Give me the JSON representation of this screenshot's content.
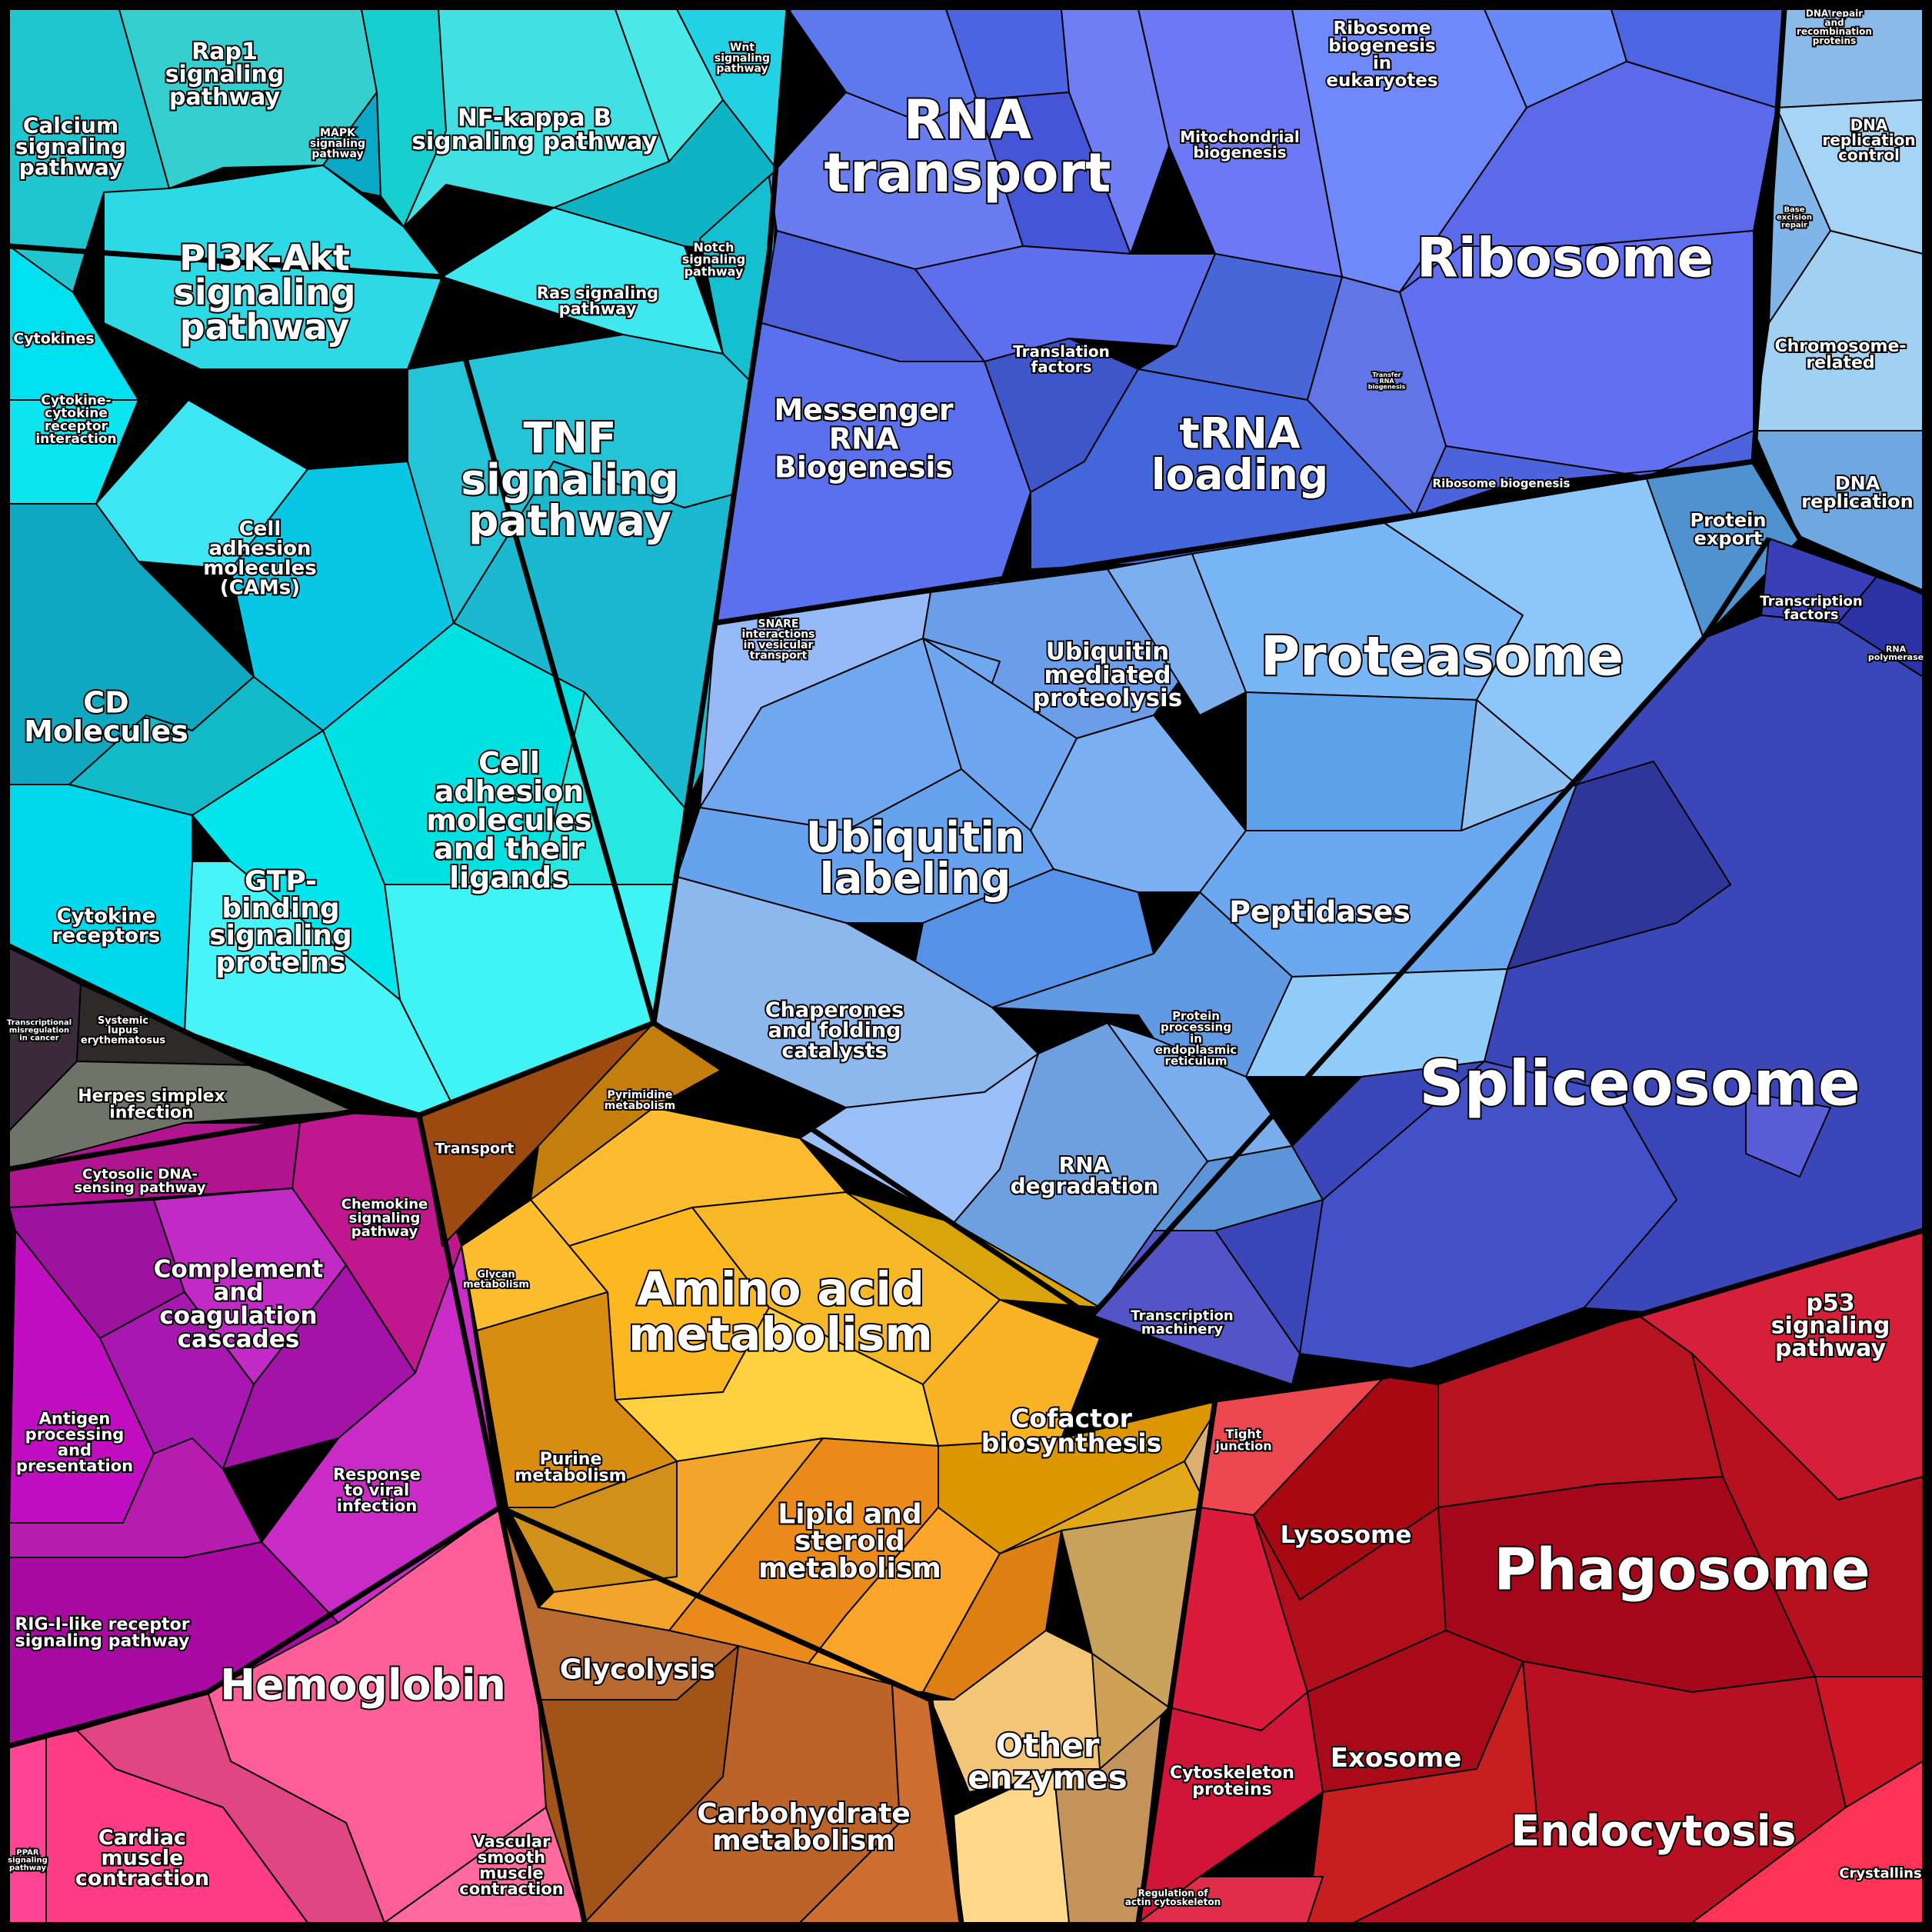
{
  "regions": [
    {
      "id": "signaling",
      "color": "#14c8d8"
    },
    {
      "id": "genetic",
      "color": "#5a6ee8"
    },
    {
      "id": "protein",
      "color": "#7eaff0"
    },
    {
      "id": "spliceosome",
      "color": "#3a46b8"
    },
    {
      "id": "dna",
      "color": "#6fb0ea"
    },
    {
      "id": "disease",
      "color": "#3a2d3a"
    },
    {
      "id": "immune",
      "color": "#b018b0"
    },
    {
      "id": "circulation",
      "color": "#ff4e9a"
    },
    {
      "id": "metabolism",
      "color": "#f0a820"
    },
    {
      "id": "cellular",
      "color": "#c8102e"
    }
  ],
  "labels": {
    "calcium": "Calcium signaling pathway",
    "rap1": "Rap1 signaling pathway",
    "mapk": "MAPK signaling pathway",
    "nfkb": "NF-kappa B signaling pathway",
    "wnt": "Wnt signaling pathway",
    "pi3k": "PI3K-Akt signaling pathway",
    "notch": "Notch signaling pathway",
    "ras": "Ras signaling pathway",
    "cytokines": "Cytokines",
    "cytokine_receptor": "Cytokine-cytokine receptor interaction",
    "cams": "Cell adhesion molecules (CAMs)",
    "tnf": "TNF signaling pathway",
    "cd": "CD Molecules",
    "cell_adhesion_ligands": "Cell adhesion molecules and their ligands",
    "gtp": "GTP-binding signaling proteins",
    "cytokine_receptors": "Cytokine receptors",
    "transcriptional_misreg": "Transcriptional misregulation in cancer",
    "lupus": "Systemic lupus erythematosus",
    "herpes": "Herpes simplex infection",
    "rna_transport": "RNA transport",
    "mito_bio": "Mitochondrial biogenesis",
    "ribosome_bio_euk": "Ribosome biogenesis in eukaryotes",
    "ribosome": "Ribosome",
    "translation_factors": "Translation factors",
    "mrna_bio": "Messenger RNA Biogenesis",
    "trna": "tRNA loading",
    "transfer_rna": "Transfer RNA biogenesis",
    "ribosome_bio": "Ribosome biogenesis",
    "dna_repair": "DNA repair and recombination proteins",
    "dna_rep_control": "DNA replication control",
    "base_excision": "Base excision repair",
    "chromosome": "Chromosome-related",
    "dna_replication": "DNA replication",
    "protein_export": "Protein export",
    "snare": "SNARE interactions in vesicular transport",
    "ubiq_proteolysis": "Ubiquitin mediated proteolysis",
    "proteasome": "Proteasome",
    "ubiq_labeling": "Ubiquitin labeling",
    "peptidases": "Peptidases",
    "chaperones": "Chaperones and folding catalysts",
    "protein_er": "Protein processing in endoplasmic reticulum",
    "rna_degradation": "RNA degradation",
    "transcription_factors": "Transcription factors",
    "rna_polymerase": "RNA polymerase",
    "spliceosome": "Spliceosome",
    "transcription_machinery": "Transcription machinery",
    "cytosolic_dna": "Cytosolic DNA-sensing pathway",
    "chemokine": "Chemokine signaling pathway",
    "complement": "Complement and coagulation cascades",
    "antigen": "Antigen processing and presentation",
    "viral": "Response to viral infection",
    "rig": "RIG-I-like receptor signaling pathway",
    "hemoglobin": "Hemoglobin",
    "ppar": "PPAR signaling pathway",
    "cardiac": "Cardiac muscle contraction",
    "vascular": "Vascular smooth muscle contraction",
    "transport": "Transport",
    "pyrimidine": "Pyrimidine metabolism",
    "glycan": "Glycan metabolism",
    "amino_acid": "Amino acid metabolism",
    "cofactor": "Cofactor biosynthesis",
    "purine": "Purine metabolism",
    "lipid": "Lipid and steroid metabolism",
    "glycolysis": "Glycolysis",
    "carbohydrate": "Carbohydrate metabolism",
    "other_enzymes": "Other enzymes",
    "p53": "p53 signaling pathway",
    "tight_junction": "Tight junction",
    "lysosome": "Lysosome",
    "phagosome": "Phagosome",
    "exosome": "Exosome",
    "cytoskeleton": "Cytoskeleton proteins",
    "endocytosis": "Endocytosis",
    "actin": "Regulation of actin cytoskeleton",
    "crystallins": "Crystallins"
  }
}
